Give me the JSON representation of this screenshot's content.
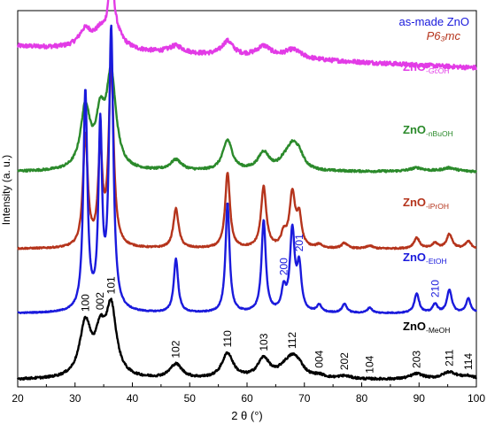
{
  "chart_data": {
    "type": "line",
    "title": "",
    "xlabel": "2 θ (°)",
    "ylabel": "Intensity (a. u.)",
    "xlim": [
      20,
      100
    ],
    "x_ticks": [
      "20",
      "30",
      "40",
      "50",
      "60",
      "70",
      "80",
      "90",
      "100"
    ],
    "y_ticks": [],
    "legend": [
      {
        "text": "as-made ZnO",
        "color": "#1a1adc"
      },
      {
        "text": "P6₃mc",
        "color": "#b5341c",
        "italic": true
      }
    ],
    "series": [
      {
        "name": "ZnO-GcOH",
        "label_main": "ZnO",
        "label_sub": "-GcOH",
        "color": "#e23be6",
        "offset": 0.87,
        "noise": 0.006,
        "baseline_slope": 0.06,
        "peaks": [
          [
            31.8,
            0.05,
            1.4
          ],
          [
            34.4,
            0.035,
            1.2
          ],
          [
            36.3,
            0.2,
            0.45
          ],
          [
            36.8,
            0.05,
            1.6
          ],
          [
            47.6,
            0.02,
            1.5
          ],
          [
            56.6,
            0.04,
            1.2
          ],
          [
            62.9,
            0.03,
            1.5
          ],
          [
            68,
            0.025,
            1.8
          ]
        ]
      },
      {
        "name": "ZnO-nBuOH",
        "label_main": "ZnO",
        "label_sub": "-nBuOH",
        "color": "#2b8a2b",
        "offset": 0.58,
        "noise": 0.003,
        "baseline_slope": 0.0,
        "peaks": [
          [
            31.8,
            0.17,
            1.0
          ],
          [
            34.4,
            0.13,
            0.9
          ],
          [
            36.3,
            0.26,
            1.0
          ],
          [
            47.6,
            0.03,
            1.2
          ],
          [
            56.6,
            0.085,
            1.0
          ],
          [
            62.9,
            0.05,
            1.2
          ],
          [
            66.4,
            0.015,
            1.0
          ],
          [
            67.9,
            0.065,
            1.3
          ],
          [
            69.1,
            0.03,
            1.0
          ],
          [
            89.6,
            0.01,
            1.5
          ],
          [
            95.3,
            0.01,
            1.5
          ]
        ]
      },
      {
        "name": "ZnO-iPrOH",
        "label_main": "ZnO",
        "label_sub": "-iPrOH",
        "color": "#b5341c",
        "offset": 0.365,
        "noise": 0.002,
        "baseline_slope": 0.0,
        "peaks": [
          [
            31.8,
            0.31,
            0.5
          ],
          [
            34.4,
            0.26,
            0.45
          ],
          [
            36.3,
            0.51,
            0.5
          ],
          [
            47.6,
            0.11,
            0.55
          ],
          [
            56.6,
            0.21,
            0.5
          ],
          [
            62.9,
            0.17,
            0.55
          ],
          [
            66.4,
            0.035,
            0.5
          ],
          [
            67.9,
            0.15,
            0.6
          ],
          [
            69.1,
            0.08,
            0.5
          ],
          [
            72.6,
            0.01,
            0.6
          ],
          [
            77,
            0.015,
            0.6
          ],
          [
            81.4,
            0.008,
            0.6
          ],
          [
            89.6,
            0.03,
            0.6
          ],
          [
            92.8,
            0.015,
            0.6
          ],
          [
            95.3,
            0.04,
            0.6
          ],
          [
            98.6,
            0.02,
            0.6
          ]
        ]
      },
      {
        "name": "ZnO-EtOH",
        "label_main": "ZnO",
        "label_sub": "-EtOH",
        "color": "#1a1adc",
        "offset": 0.185,
        "noise": 0.0015,
        "baseline_slope": 0.0,
        "peaks": [
          [
            31.8,
            0.61,
            0.42
          ],
          [
            34.4,
            0.5,
            0.38
          ],
          [
            36.3,
            0.78,
            0.45
          ],
          [
            47.6,
            0.15,
            0.45
          ],
          [
            56.6,
            0.305,
            0.42
          ],
          [
            62.9,
            0.255,
            0.45
          ],
          [
            66.4,
            0.06,
            0.45
          ],
          [
            67.9,
            0.225,
            0.5
          ],
          [
            69.1,
            0.12,
            0.45
          ],
          [
            72.6,
            0.02,
            0.5
          ],
          [
            77,
            0.025,
            0.5
          ],
          [
            81.4,
            0.015,
            0.5
          ],
          [
            89.6,
            0.055,
            0.5
          ],
          [
            92.8,
            0.025,
            0.5
          ],
          [
            95.3,
            0.065,
            0.5
          ],
          [
            98.6,
            0.04,
            0.5
          ]
        ]
      },
      {
        "name": "ZnO-MeOH",
        "label_main": "ZnO",
        "label_sub": "-MeOH",
        "color": "#000000",
        "offset": 0.0,
        "noise": 0.003,
        "baseline_slope": 0.0,
        "peaks": [
          [
            31.8,
            0.15,
            1.2
          ],
          [
            34.4,
            0.105,
            1.0
          ],
          [
            36.3,
            0.19,
            1.1
          ],
          [
            47.6,
            0.04,
            1.3
          ],
          [
            56.6,
            0.07,
            1.2
          ],
          [
            62.9,
            0.055,
            1.3
          ],
          [
            66.4,
            0.015,
            1.2
          ],
          [
            67.9,
            0.05,
            1.5
          ],
          [
            69.1,
            0.02,
            1.2
          ],
          [
            72.6,
            0.008,
            1.2
          ],
          [
            77,
            0.008,
            1.4
          ],
          [
            89.6,
            0.015,
            1.4
          ],
          [
            95.3,
            0.02,
            1.5
          ],
          [
            98.6,
            0.008,
            1.4
          ]
        ]
      }
    ],
    "miller_indices": [
      {
        "text": "100",
        "x": 31.8,
        "series": "ZnO-MeOH",
        "color": "#000000"
      },
      {
        "text": "002",
        "x": 34.4,
        "series": "ZnO-MeOH",
        "color": "#000000"
      },
      {
        "text": "101",
        "x": 36.3,
        "series": "ZnO-MeOH",
        "color": "#000000"
      },
      {
        "text": "102",
        "x": 47.6,
        "series": "ZnO-MeOH",
        "color": "#000000"
      },
      {
        "text": "110",
        "x": 56.6,
        "series": "ZnO-MeOH",
        "color": "#000000"
      },
      {
        "text": "103",
        "x": 62.9,
        "series": "ZnO-MeOH",
        "color": "#000000"
      },
      {
        "text": "112",
        "x": 67.9,
        "series": "ZnO-MeOH",
        "color": "#000000"
      },
      {
        "text": "004",
        "x": 72.6,
        "series": "ZnO-MeOH",
        "color": "#000000"
      },
      {
        "text": "202",
        "x": 77.0,
        "series": "ZnO-MeOH",
        "color": "#000000"
      },
      {
        "text": "104",
        "x": 81.4,
        "series": "ZnO-MeOH",
        "color": "#000000"
      },
      {
        "text": "203",
        "x": 89.6,
        "series": "ZnO-MeOH",
        "color": "#000000"
      },
      {
        "text": "211",
        "x": 95.3,
        "series": "ZnO-MeOH",
        "color": "#000000"
      },
      {
        "text": "114",
        "x": 98.6,
        "series": "ZnO-MeOH",
        "color": "#000000"
      },
      {
        "text": "200",
        "x": 66.4,
        "series": "ZnO-EtOH",
        "color": "#1a1adc"
      },
      {
        "text": "201",
        "x": 69.1,
        "series": "ZnO-EtOH",
        "color": "#1a1adc"
      },
      {
        "text": "210",
        "x": 92.8,
        "series": "ZnO-EtOH",
        "color": "#1a1adc"
      }
    ]
  }
}
